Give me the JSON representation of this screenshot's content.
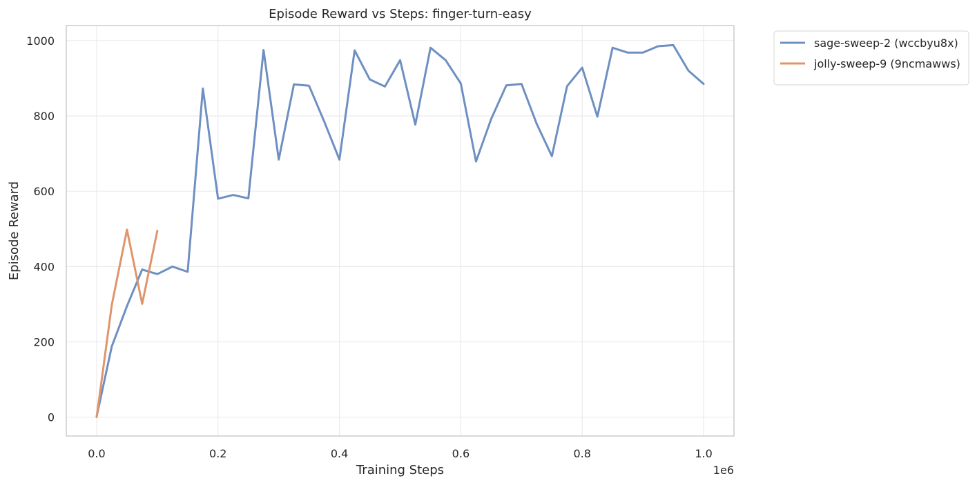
{
  "chart_data": {
    "type": "line",
    "title": "Episode Reward vs Steps: finger-turn-easy",
    "xlabel": "Training Steps",
    "ylabel": "Episode Reward",
    "x_offset_text": "1e6",
    "xlim": [
      -0.05,
      1.05
    ],
    "ylim": [
      -50,
      1040
    ],
    "xticks": [
      0.0,
      0.2,
      0.4,
      0.6,
      0.8,
      1.0
    ],
    "xtick_labels": [
      "0.0",
      "0.2",
      "0.4",
      "0.6",
      "0.8",
      "1.0"
    ],
    "yticks": [
      0,
      200,
      400,
      600,
      800,
      1000
    ],
    "ytick_labels": [
      "0",
      "200",
      "400",
      "600",
      "800",
      "1000"
    ],
    "grid": true,
    "legend_position": "outside-top-right",
    "series": [
      {
        "name": "sage-sweep-2 (wccbyu8x)",
        "color": "#6d8fc2",
        "x": [
          0.0,
          0.025,
          0.05,
          0.075,
          0.1,
          0.125,
          0.15,
          0.175,
          0.2,
          0.225,
          0.25,
          0.275,
          0.3,
          0.325,
          0.35,
          0.375,
          0.4,
          0.425,
          0.45,
          0.475,
          0.5,
          0.525,
          0.55,
          0.575,
          0.6,
          0.625,
          0.65,
          0.675,
          0.7,
          0.725,
          0.75,
          0.775,
          0.8,
          0.825,
          0.85,
          0.875,
          0.9,
          0.925,
          0.95,
          0.975,
          1.0
        ],
        "y": [
          2,
          188,
          295,
          392,
          380,
          400,
          386,
          873,
          580,
          590,
          581,
          975,
          684,
          884,
          880,
          785,
          684,
          974,
          897,
          878,
          948,
          777,
          981,
          948,
          886,
          679,
          792,
          881,
          885,
          779,
          693,
          879,
          928,
          798,
          981,
          968,
          968,
          985,
          988,
          920,
          885
        ]
      },
      {
        "name": "jolly-sweep-9 (9ncmawws)",
        "color": "#e0946a",
        "x": [
          0.0,
          0.025,
          0.05,
          0.075,
          0.1
        ],
        "y": [
          0,
          298,
          498,
          301,
          495
        ]
      }
    ]
  }
}
